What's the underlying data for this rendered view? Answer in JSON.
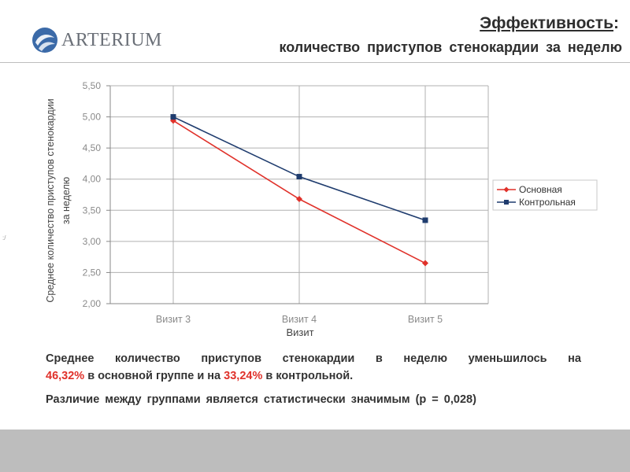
{
  "header": {
    "logo_text": "ARTERIUM",
    "title_main": "Эффективность",
    "title_colon": ":",
    "subtitle": "количество приступов стенокардии за неделю"
  },
  "chart_data": {
    "type": "line",
    "categories": [
      "Визит 3",
      "Визит 4",
      "Визит 5"
    ],
    "series": [
      {
        "name": "Основная",
        "values": [
          4.94,
          3.68,
          2.65
        ],
        "color": "#e0312a",
        "marker": "diamond"
      },
      {
        "name": "Контрольная",
        "values": [
          5.0,
          4.04,
          3.34
        ],
        "color": "#1f3c6e",
        "marker": "square"
      }
    ],
    "xlabel": "Визит",
    "ylabel_line1": "Среднее количество приступов стенокардии",
    "ylabel_line2": "за неделю",
    "ylim": [
      2.0,
      5.5
    ],
    "yticks": [
      "2,00",
      "2,50",
      "3,00",
      "3,50",
      "4,00",
      "4,50",
      "5,00",
      "5,50"
    ],
    "grid": true,
    "legend_position": "right"
  },
  "summary": {
    "p1_start": "Среднее количество приступов стенокардии в неделю уменьшилось на",
    "pct_main": "46,32%",
    "p1_mid": " в основной группе и на ",
    "pct_control": "33,24%",
    "p1_end": " в контрольной.",
    "p2": "Различие между группами является статистически значимым (р = 0,028)"
  },
  "stray_mark": ":/",
  "colors": {
    "accent_red": "#e0312a",
    "accent_navy": "#1f3c6e",
    "footer": "#bdbdbd"
  }
}
